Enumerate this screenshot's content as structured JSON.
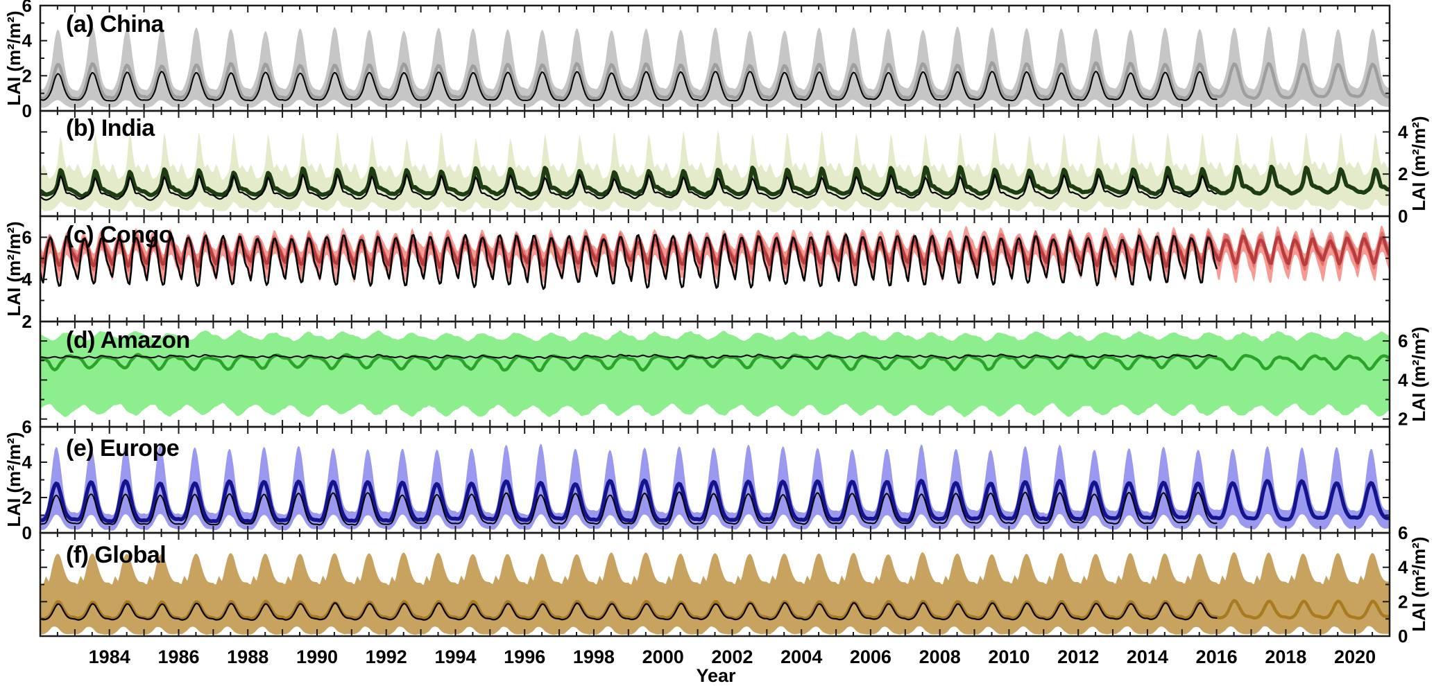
{
  "chart_data": {
    "type": "line",
    "description": "Seasonal LAI time series with shaded ensemble band, thick colored line (full record) and thin black line (ends 2016) for six regions",
    "y_axis_label": "LAI (m²/m²)",
    "x": {
      "label": "Year",
      "start": 1982,
      "end": 2021,
      "tick_labels": [
        1984,
        1986,
        1988,
        1990,
        1992,
        1994,
        1996,
        1998,
        2000,
        2002,
        2004,
        2006,
        2008,
        2010,
        2012,
        2014,
        2016,
        2018,
        2020
      ],
      "minor_tick_interval_years": 0.5,
      "obs_end_year": 2016
    },
    "series_roles": {
      "band": "shaded envelope",
      "line": "thick colored line",
      "obs": "thin black line"
    },
    "panels": [
      {
        "id": "a",
        "title": "(a) China",
        "region": "China",
        "axis_side": "left",
        "ylim": [
          0,
          6
        ],
        "yticks": [
          0,
          2,
          4,
          6
        ],
        "colors": {
          "band": "#c6c6c6",
          "line": "#9e9e9e",
          "obs": "#000000"
        },
        "style": {
          "line_width": 4.5,
          "obs_width": 2
        },
        "monthly": {
          "band_upper": [
            1.25,
            1.2,
            1.45,
            1.95,
            2.75,
            4.05,
            4.66,
            4.3,
            3.1,
            2.05,
            1.5,
            1.3
          ],
          "band_lower": [
            0.2,
            0.18,
            0.22,
            0.3,
            0.45,
            0.58,
            0.62,
            0.55,
            0.42,
            0.3,
            0.24,
            0.2
          ],
          "line": [
            0.75,
            0.72,
            0.8,
            1.05,
            1.55,
            2.2,
            2.62,
            2.42,
            1.8,
            1.22,
            0.9,
            0.78
          ],
          "obs": [
            0.62,
            0.6,
            0.65,
            0.85,
            1.22,
            1.85,
            2.18,
            2.02,
            1.48,
            1.0,
            0.72,
            0.63
          ]
        },
        "variability": {
          "amp": 0.06,
          "off": 0.02,
          "noise": 0.015,
          "trend": 0.05
        }
      },
      {
        "id": "b",
        "title": "(b) India",
        "region": "India",
        "axis_side": "right",
        "ylim": [
          0,
          5
        ],
        "yticks": [
          0,
          2,
          4
        ],
        "colors": {
          "band": "#e3ebcb",
          "line": "#1d3d12",
          "obs": "#000000"
        },
        "style": {
          "line_width": 6,
          "obs_width": 2.2
        },
        "monthly": {
          "band_upper": [
            2.1,
            2.45,
            2.15,
            1.8,
            1.85,
            2.0,
            2.5,
            3.85,
            3.05,
            2.3,
            2.45,
            2.2
          ],
          "band_lower": [
            0.4,
            0.3,
            0.25,
            0.22,
            0.28,
            0.35,
            0.5,
            0.7,
            0.6,
            0.45,
            0.42,
            0.4
          ],
          "line": [
            1.15,
            1.05,
            1.0,
            1.0,
            1.08,
            1.18,
            1.5,
            2.15,
            1.85,
            1.35,
            1.3,
            1.22
          ],
          "obs": [
            0.95,
            0.85,
            0.8,
            0.82,
            0.92,
            1.02,
            1.35,
            1.85,
            1.5,
            1.1,
            1.08,
            1.0
          ]
        },
        "variability": {
          "amp": 0.12,
          "off": 0.04,
          "noise": 0.03,
          "trend": 0.12
        }
      },
      {
        "id": "c",
        "title": "(c) Congo",
        "region": "Congo",
        "axis_side": "left",
        "ylim": [
          2,
          7
        ],
        "yticks": [
          2,
          4,
          6
        ],
        "colors": {
          "band": "#f59b93",
          "band_inner": "#e0716b",
          "line": "#b73c3e",
          "obs": "#000000"
        },
        "style": {
          "line_width": 4.5,
          "obs_width": 2.6
        },
        "inner_halfwidth": 0.3,
        "monthly": {
          "band_upper": [
            5.55,
            5.35,
            5.85,
            6.15,
            6.1,
            5.75,
            5.35,
            5.3,
            5.9,
            6.35,
            6.15,
            5.8
          ],
          "band_lower": [
            4.35,
            3.95,
            4.7,
            5.2,
            5.15,
            4.7,
            4.1,
            3.95,
            4.8,
            5.3,
            5.15,
            4.7
          ],
          "line": [
            5.0,
            4.75,
            5.35,
            5.75,
            5.65,
            5.3,
            4.8,
            4.7,
            5.4,
            5.9,
            5.7,
            5.3
          ],
          "obs": [
            4.5,
            4.0,
            5.1,
            5.9,
            5.8,
            4.9,
            3.95,
            3.75,
            5.1,
            5.95,
            5.75,
            4.9
          ]
        },
        "variability": {
          "amp": 0.1,
          "off": 0.05,
          "noise": 0.09,
          "trend": 0.08,
          "obs_noise": 1.1
        }
      },
      {
        "id": "d",
        "title": "(d) Amazon",
        "region": "Amazon",
        "axis_side": "right",
        "ylim": [
          1.6,
          7
        ],
        "yticks": [
          2,
          4,
          6
        ],
        "colors": {
          "band": "#8cee8c",
          "line": "#2ba32b",
          "obs": "#000000"
        },
        "style": {
          "line_width": 4.5,
          "obs_width": 2
        },
        "monthly": {
          "band_upper": [
            6.3,
            6.26,
            6.2,
            6.1,
            6.05,
            6.1,
            6.2,
            6.33,
            6.42,
            6.48,
            6.44,
            6.36
          ],
          "band_lower": [
            2.5,
            2.6,
            2.7,
            2.75,
            2.7,
            2.55,
            2.4,
            2.3,
            2.2,
            2.18,
            2.25,
            2.38
          ],
          "line": [
            5.15,
            5.12,
            5.05,
            4.9,
            4.7,
            4.58,
            4.65,
            4.85,
            5.05,
            5.18,
            5.24,
            5.2
          ],
          "obs": [
            5.22,
            5.2,
            5.18,
            5.16,
            5.2,
            5.24,
            5.2,
            5.16,
            5.2,
            5.28,
            5.26,
            5.22
          ]
        },
        "variability": {
          "amp": 0.12,
          "off": 0.05,
          "noise": 0.035,
          "trend": 0,
          "obs_damp": 0.25,
          "obs_noise": 0.35
        }
      },
      {
        "id": "e",
        "title": "(e) Europe",
        "region": "Europe",
        "axis_side": "left",
        "ylim": [
          0,
          6
        ],
        "yticks": [
          0,
          2,
          4,
          6
        ],
        "colors": {
          "band": "#9a99ef",
          "line": "#14148c",
          "obs": "#000000"
        },
        "style": {
          "line_width": 5.5,
          "obs_width": 2
        },
        "monthly": {
          "band_upper": [
            1.15,
            1.1,
            1.3,
            2.05,
            3.4,
            4.6,
            4.72,
            3.8,
            2.45,
            1.6,
            1.25,
            1.15
          ],
          "band_lower": [
            0.2,
            0.18,
            0.25,
            0.45,
            0.75,
            0.98,
            1.0,
            0.85,
            0.55,
            0.35,
            0.25,
            0.2
          ],
          "line": [
            0.72,
            0.7,
            0.85,
            1.35,
            2.15,
            2.72,
            2.78,
            2.28,
            1.55,
            1.05,
            0.8,
            0.72
          ],
          "obs": [
            0.5,
            0.48,
            0.58,
            0.95,
            1.6,
            2.1,
            2.15,
            1.75,
            1.15,
            0.75,
            0.56,
            0.5
          ]
        },
        "variability": {
          "amp": 0.08,
          "off": 0.02,
          "noise": 0.02,
          "trend": 0.1
        }
      },
      {
        "id": "f",
        "title": "(f) Global",
        "region": "Global",
        "axis_side": "right",
        "ylim": [
          0,
          6
        ],
        "yticks": [
          0,
          2,
          4,
          6
        ],
        "colors": {
          "band": "#c7a35f",
          "line": "#a87b20",
          "obs": "#000000"
        },
        "style": {
          "line_width": 4.5,
          "obs_width": 2.2
        },
        "monthly": {
          "band_upper": [
            3.1,
            3.0,
            3.5,
            3.2,
            3.9,
            4.55,
            4.8,
            4.6,
            4.0,
            3.5,
            3.2,
            3.12
          ],
          "band_lower": [
            0.12,
            0.1,
            0.18,
            0.32,
            0.5,
            0.55,
            0.48,
            0.3,
            0.18,
            0.12,
            0.1,
            0.11
          ],
          "line": [
            1.08,
            1.02,
            1.05,
            1.15,
            1.4,
            1.75,
            1.98,
            1.9,
            1.6,
            1.3,
            1.15,
            1.1
          ],
          "obs": [
            1.0,
            0.95,
            0.97,
            1.07,
            1.3,
            1.63,
            1.87,
            1.8,
            1.5,
            1.22,
            1.07,
            1.02
          ]
        },
        "variability": {
          "amp": 0.05,
          "off": 0.015,
          "noise": 0.012,
          "trend": 0.04
        }
      }
    ]
  }
}
